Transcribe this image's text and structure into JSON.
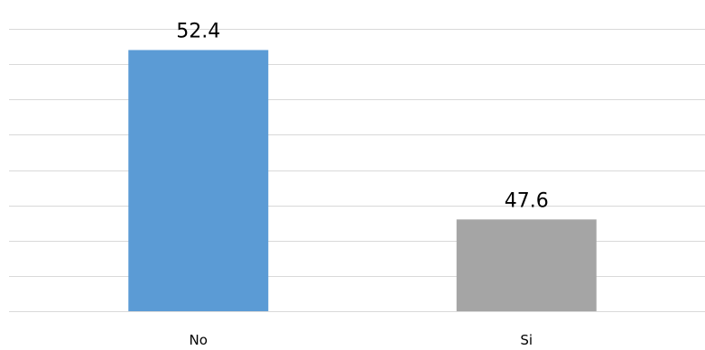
{
  "chart_data": {
    "type": "bar",
    "categories": [
      "No",
      "Si"
    ],
    "values": [
      52.4,
      47.6
    ],
    "value_labels": [
      "52.4",
      "47.6"
    ],
    "ylim": [
      45,
      53
    ],
    "y_gridlines": [
      45,
      46,
      47,
      48,
      49,
      50,
      51,
      52,
      53
    ],
    "grid": true,
    "legend": "none",
    "colors": [
      "#5b9bd5",
      "#a5a5a5"
    ],
    "title": "",
    "xlabel": "",
    "ylabel": ""
  }
}
